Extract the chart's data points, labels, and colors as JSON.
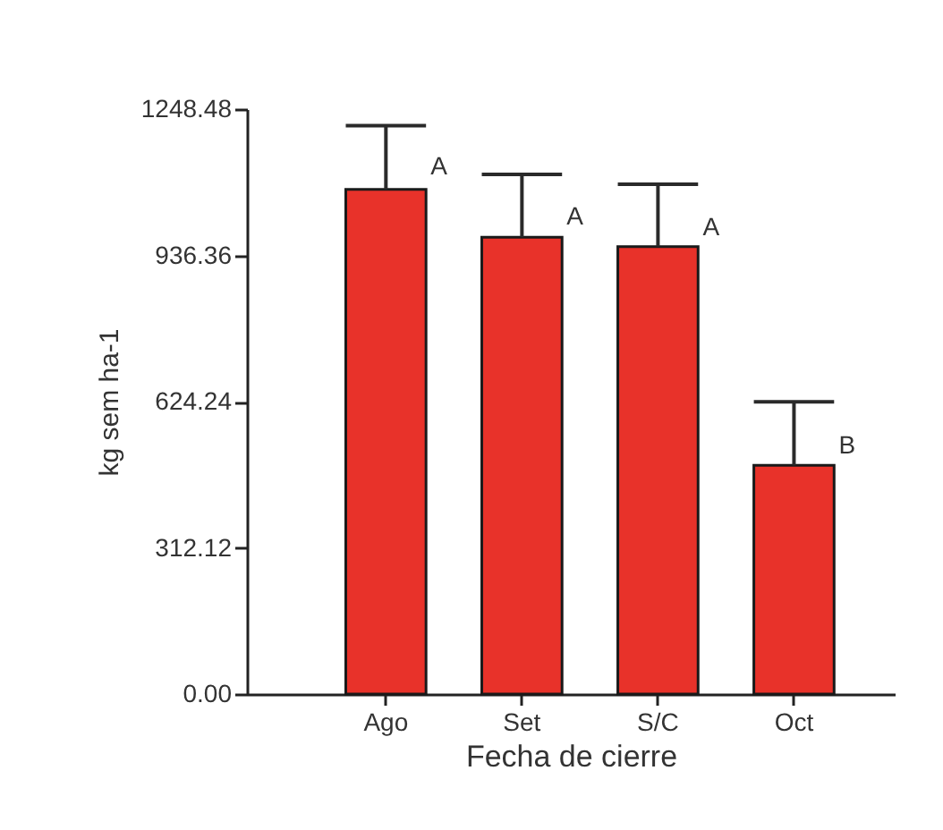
{
  "chart_data": {
    "type": "bar",
    "categories": [
      "Ago",
      "Set",
      "S/C",
      "Oct"
    ],
    "values": [
      1077,
      975,
      955,
      488
    ],
    "color": "#e8322a",
    "errors": [
      [
        1077,
        1213
      ],
      [
        975,
        1109
      ],
      [
        955,
        1088
      ],
      [
        488,
        624
      ]
    ],
    "xlabel": "Fecha de cierre",
    "ylabel": "kg sem ha-1",
    "ylim": [
      0,
      1248.48
    ],
    "yticks": [
      {
        "value": 0,
        "label": "0.00"
      },
      312.12,
      624.24,
      936.36,
      1248.48
    ],
    "annotations": [
      {
        "text": "A",
        "x": "Ago",
        "y": 1124
      },
      {
        "text": "A",
        "x": "Set",
        "y": 1018
      },
      {
        "text": "A",
        "x": "S/C",
        "y": 994
      },
      {
        "text": "B",
        "x": "Oct",
        "y": 528
      }
    ],
    "grid": false
  }
}
